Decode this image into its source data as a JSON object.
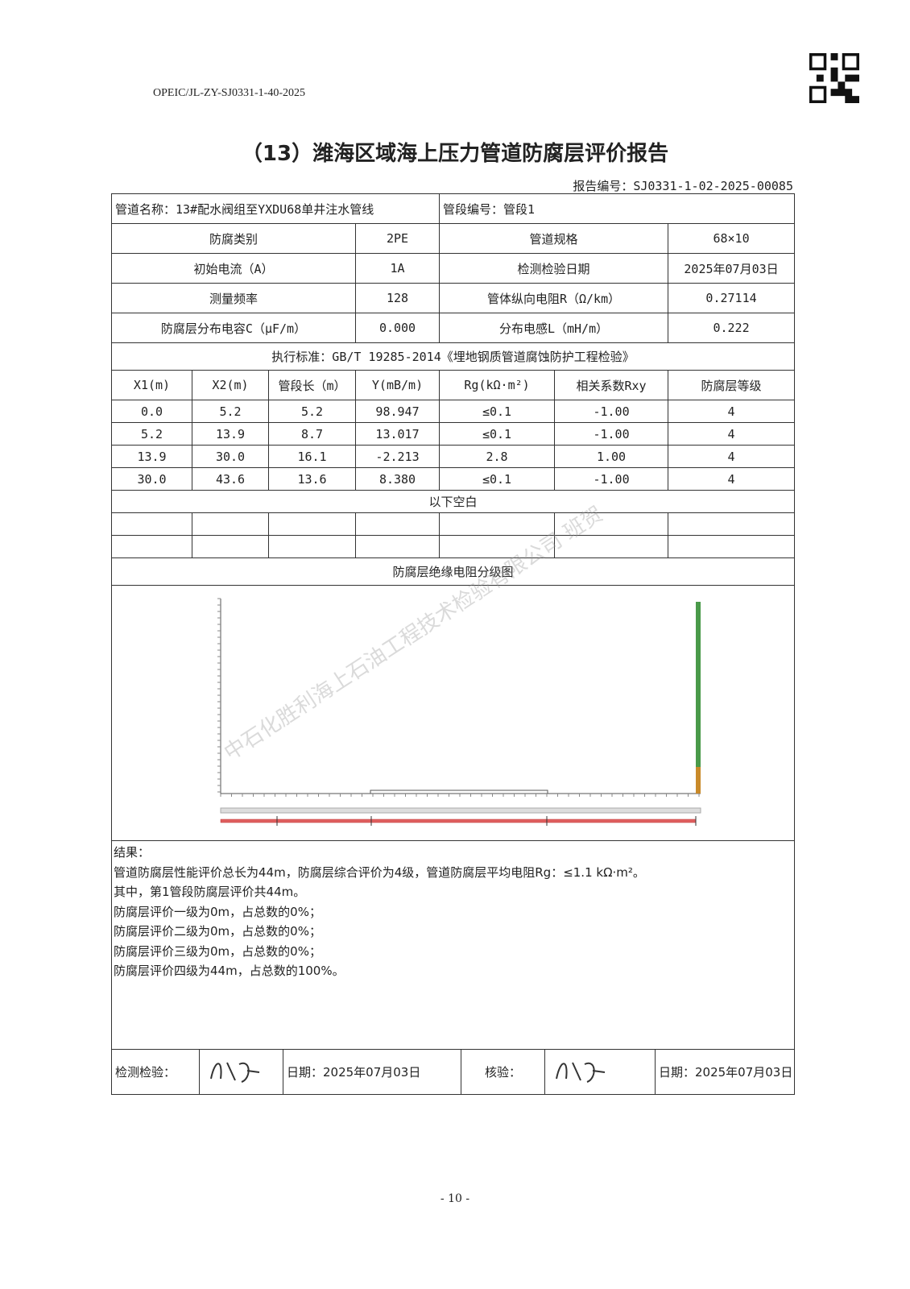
{
  "header": {
    "doc_code": "OPEIC/JL-ZY-SJ0331-1-40-2025",
    "title": "（13）潍海区域海上压力管道防腐层评价报告",
    "report_no": "报告编号：SJ0331-1-02-2025-00085"
  },
  "info": {
    "pipe_name": "管道名称：13#配水阀组至YXDU68单井注水管线",
    "segment_no": "管段编号：管段1",
    "rows": [
      [
        "防腐类别",
        "2PE",
        "管道规格",
        "68×10"
      ],
      [
        "初始电流（A）",
        "1A",
        "检测检验日期",
        "2025年07月03日"
      ],
      [
        "测量频率",
        "128",
        "管体纵向电阻R（Ω/km）",
        "0.27114"
      ],
      [
        "防腐层分布电容C（μF/m）",
        "0.000",
        "分布电感L（mH/m）",
        "0.222"
      ]
    ]
  },
  "standard": "执行标准：GB/T 19285-2014《埋地钢质管道腐蚀防护工程检验》",
  "table": {
    "columns": [
      "X1(m)",
      "X2(m)",
      "管段长（m）",
      "Y(mB/m)",
      "Rg(kΩ·m²)",
      "相关系数Rxy",
      "防腐层等级"
    ],
    "rows": [
      [
        "0.0",
        "5.2",
        "5.2",
        "98.947",
        "≤0.1",
        "-1.00",
        "4"
      ],
      [
        "5.2",
        "13.9",
        "8.7",
        "13.017",
        "≤0.1",
        "-1.00",
        "4"
      ],
      [
        "13.9",
        "30.0",
        "16.1",
        "-2.213",
        "2.8",
        "1.00",
        "4"
      ],
      [
        "30.0",
        "43.6",
        "13.6",
        "8.380",
        "≤0.1",
        "-1.00",
        "4"
      ]
    ]
  },
  "blank_note": "以下空白",
  "chart_title": "防腐层绝缘电阻分级图",
  "results": {
    "heading": "结果：",
    "lines": [
      "管道防腐层性能评价总长为44m，防腐层综合评价为4级，管道防腐层平均电阻Rg：≤1.1 kΩ·m²。",
      "其中，第1管段防腐层评价共44m。",
      "防腐层评价一级为0m，占总数的0%；",
      "防腐层评价二级为0m，占总数的0%；",
      "防腐层评价三级为0m，占总数的0%；",
      "防腐层评价四级为44m，占总数的100%。"
    ]
  },
  "signature": {
    "inspector_label": "检测检验：",
    "inspector_date": "日期：2025年07月03日",
    "reviewer_label": "核验：",
    "reviewer_date": "日期：2025年07月03日"
  },
  "page_number": "- 10 -",
  "watermark": "中石化胜利海上石油工程技术检验有限公司 班贺"
}
